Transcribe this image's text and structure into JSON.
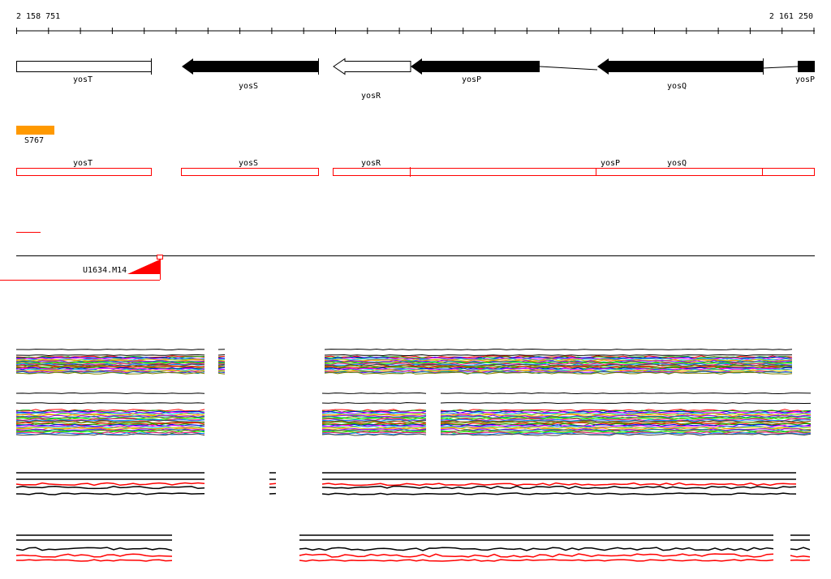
{
  "ruler": {
    "start_label": "2 158 751",
    "end_label": "2 161 250"
  },
  "genes": [
    {
      "name": "yosT",
      "strand": "none",
      "fill": "white"
    },
    {
      "name": "yosS",
      "strand": "minus",
      "fill": "black"
    },
    {
      "name": "yosR",
      "strand": "minus",
      "fill": "white"
    },
    {
      "name": "yosP",
      "strand": "minus",
      "fill": "black"
    },
    {
      "name": "yosQ",
      "strand": "minus",
      "fill": "black"
    },
    {
      "name": "yosP",
      "strand": "minus",
      "fill": "black"
    }
  ],
  "feature_track": {
    "label": "S767",
    "color": "#ff9900"
  },
  "cds_track": {
    "labels": [
      "yosT",
      "yosS",
      "yosR",
      "yosP",
      "yosQ"
    ],
    "color": "#ff0000"
  },
  "probe_track": {
    "label": "U1634.M14",
    "color": "#ff0000"
  },
  "colors": {
    "line": "#000000",
    "accent": "#ff0000",
    "orange": "#ff9900",
    "rainbow": [
      "#ff0000",
      "#00aa00",
      "#0000ff",
      "#ff00ff",
      "#00cccc",
      "#cccc00",
      "#ff8800",
      "#8800ff",
      "#008888",
      "#888800",
      "#00ff00",
      "#ff0088",
      "#0088ff",
      "#444444",
      "#aa5500",
      "#55aa00"
    ]
  }
}
